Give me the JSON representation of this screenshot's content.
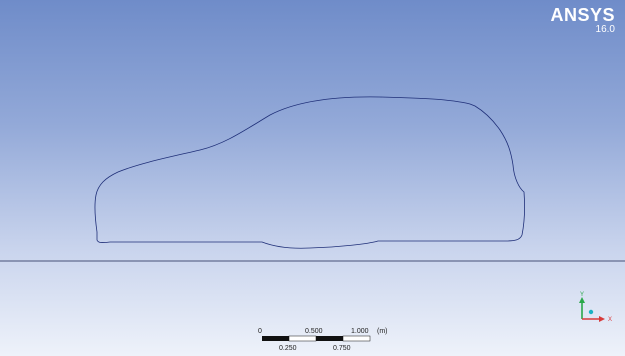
{
  "brand": {
    "name": "ANSYS",
    "version": "16.0"
  },
  "scale_bar": {
    "top_labels": [
      "0",
      "0.500",
      "1.000"
    ],
    "unit": "(m)",
    "bottom_labels": [
      "0.250",
      "0.750"
    ]
  },
  "triad": {
    "y_label": "Y",
    "x_label": "X",
    "colors": {
      "y_axis": "#2aa84a",
      "x_axis": "#d83a3a",
      "origin": "#1ab3c4"
    }
  },
  "colors": {
    "background_top": "#6f8cc9",
    "background_bottom": "#eef2fa",
    "geometry_line": "#1f2f78",
    "ground_line": "#1a2550"
  }
}
